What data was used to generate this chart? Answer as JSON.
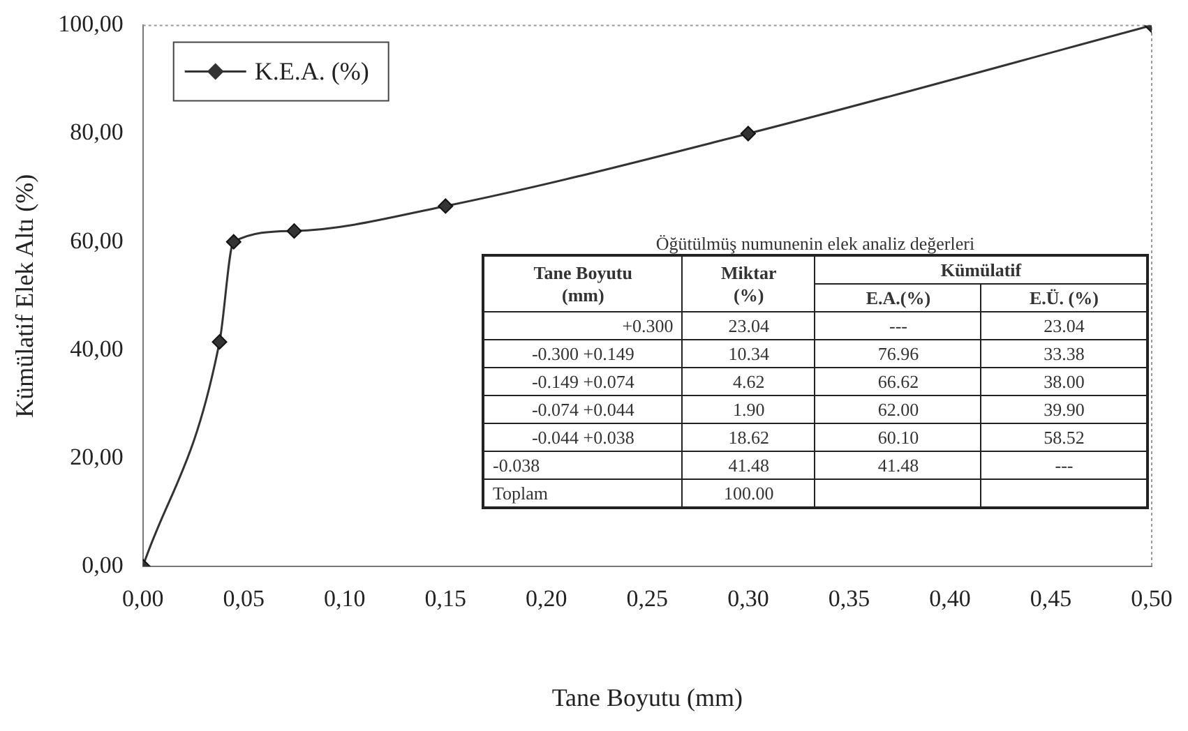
{
  "chart_data": {
    "type": "line",
    "xlabel": "Tane Boyutu (mm)",
    "ylabel": "Kümülatif Elek Altı (%)",
    "x": [
      0,
      0.038,
      0.045,
      0.075,
      0.15,
      0.3,
      0.5
    ],
    "series": [
      {
        "name": "K.E.A. (%)",
        "color": "#333333",
        "values": [
          0,
          41.5,
          60,
          62,
          66.6,
          80,
          100
        ]
      }
    ],
    "xlim": [
      0,
      0.5
    ],
    "ylim": [
      0,
      100
    ],
    "xticks": [
      {
        "value": 0,
        "label": "0,00"
      },
      {
        "value": 0.05,
        "label": "0,05"
      },
      {
        "value": 0.1,
        "label": "0,10"
      },
      {
        "value": 0.15,
        "label": "0,15"
      },
      {
        "value": 0.2,
        "label": "0,20"
      },
      {
        "value": 0.25,
        "label": "0,25"
      },
      {
        "value": 0.3,
        "label": "0,30"
      },
      {
        "value": 0.35,
        "label": "0,35"
      },
      {
        "value": 0.4,
        "label": "0,40"
      },
      {
        "value": 0.45,
        "label": "0,45"
      },
      {
        "value": 0.5,
        "label": "0,50"
      }
    ],
    "yticks": [
      {
        "value": 0,
        "label": "0,00"
      },
      {
        "value": 20,
        "label": "20,00"
      },
      {
        "value": 40,
        "label": "40,00"
      },
      {
        "value": 60,
        "label": "60,00"
      },
      {
        "value": 80,
        "label": "80,00"
      },
      {
        "value": 100,
        "label": "100,00"
      }
    ],
    "grid": false,
    "legend": "top left",
    "marker": "diamond",
    "line_style": "solid",
    "annotations": [
      "Öğütülmüş numunenin elek analiz değerleri",
      "Tane Boyutu\n(mm)",
      "Miktar\n(%)",
      "Kümülatif",
      "E.A.(%)",
      "E.Ü. (%)",
      "+0.300",
      "23.04",
      "---",
      "23.04",
      "-0.300 +0.149",
      "10.34",
      "76.96",
      "33.38",
      "-0.149 +0.074",
      "4.62",
      "66.62",
      "38.00",
      "-0.074 +0.044",
      "1.90",
      "62.00",
      "39.90",
      "-0.044 +0.038",
      "18.62",
      "60.10",
      "58.52",
      "-0.038",
      "41.48",
      "41.48",
      "---",
      "Toplam",
      "100.00"
    ]
  }
}
